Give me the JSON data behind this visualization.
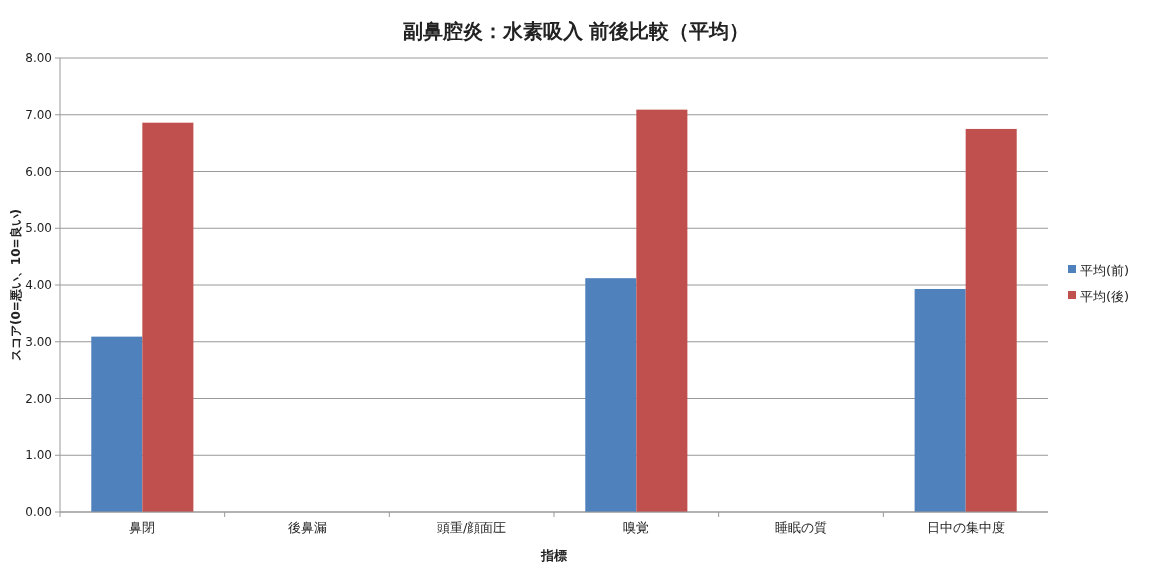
{
  "chart_data": {
    "type": "bar",
    "title": "副鼻腔炎：水素吸入 前後比較（平均）",
    "xlabel": "指標",
    "ylabel": "スコア(0=悪い、10=良い)",
    "categories": [
      "鼻閉",
      "後鼻漏",
      "頭重/顔面圧",
      "嗅覚",
      "睡眠の質",
      "日中の集中度"
    ],
    "series": [
      {
        "name": "平均(前)",
        "color": "#4f81bd",
        "values": [
          3.09,
          null,
          null,
          4.12,
          null,
          3.93
        ]
      },
      {
        "name": "平均(後)",
        "color": "#c0504d",
        "values": [
          6.86,
          null,
          null,
          7.09,
          null,
          6.75
        ]
      }
    ],
    "ylim": [
      0,
      8
    ],
    "yticks": [
      {
        "value": 0,
        "label": "0.00"
      },
      {
        "value": 1,
        "label": "1.00"
      },
      {
        "value": 2,
        "label": "2.00"
      },
      {
        "value": 3,
        "label": "3.00"
      },
      {
        "value": 4,
        "label": "4.00"
      },
      {
        "value": 5,
        "label": "5.00"
      },
      {
        "value": 6,
        "label": "6.00"
      },
      {
        "value": 7,
        "label": "7.00"
      },
      {
        "value": 8,
        "label": "8.00"
      }
    ],
    "grid": "y",
    "legend": "right"
  }
}
